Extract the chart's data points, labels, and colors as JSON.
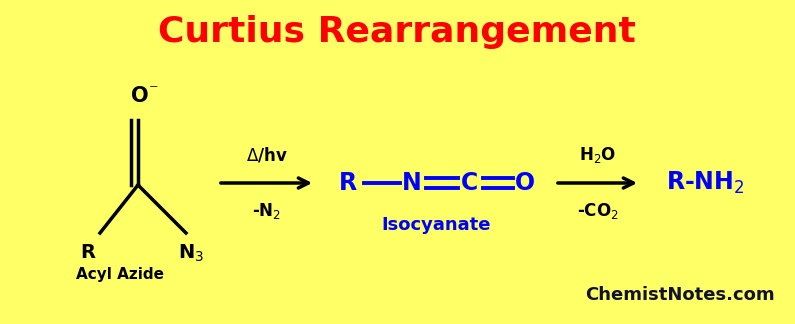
{
  "title": "Curtius Rearrangement",
  "title_color": "red",
  "title_fontsize": 26,
  "background_color": "#FFFF66",
  "watermark": "ChemistNotes.com",
  "watermark_color": "#111133",
  "watermark_fontsize": 13,
  "acyl_label": "Acyl Azide",
  "iso_label": "Isocyanate",
  "arrow1_top": "Δ/ hv",
  "arrow1_bot": "-N₂",
  "arrow2_top": "H₂O",
  "arrow2_bot": "-CO₂"
}
